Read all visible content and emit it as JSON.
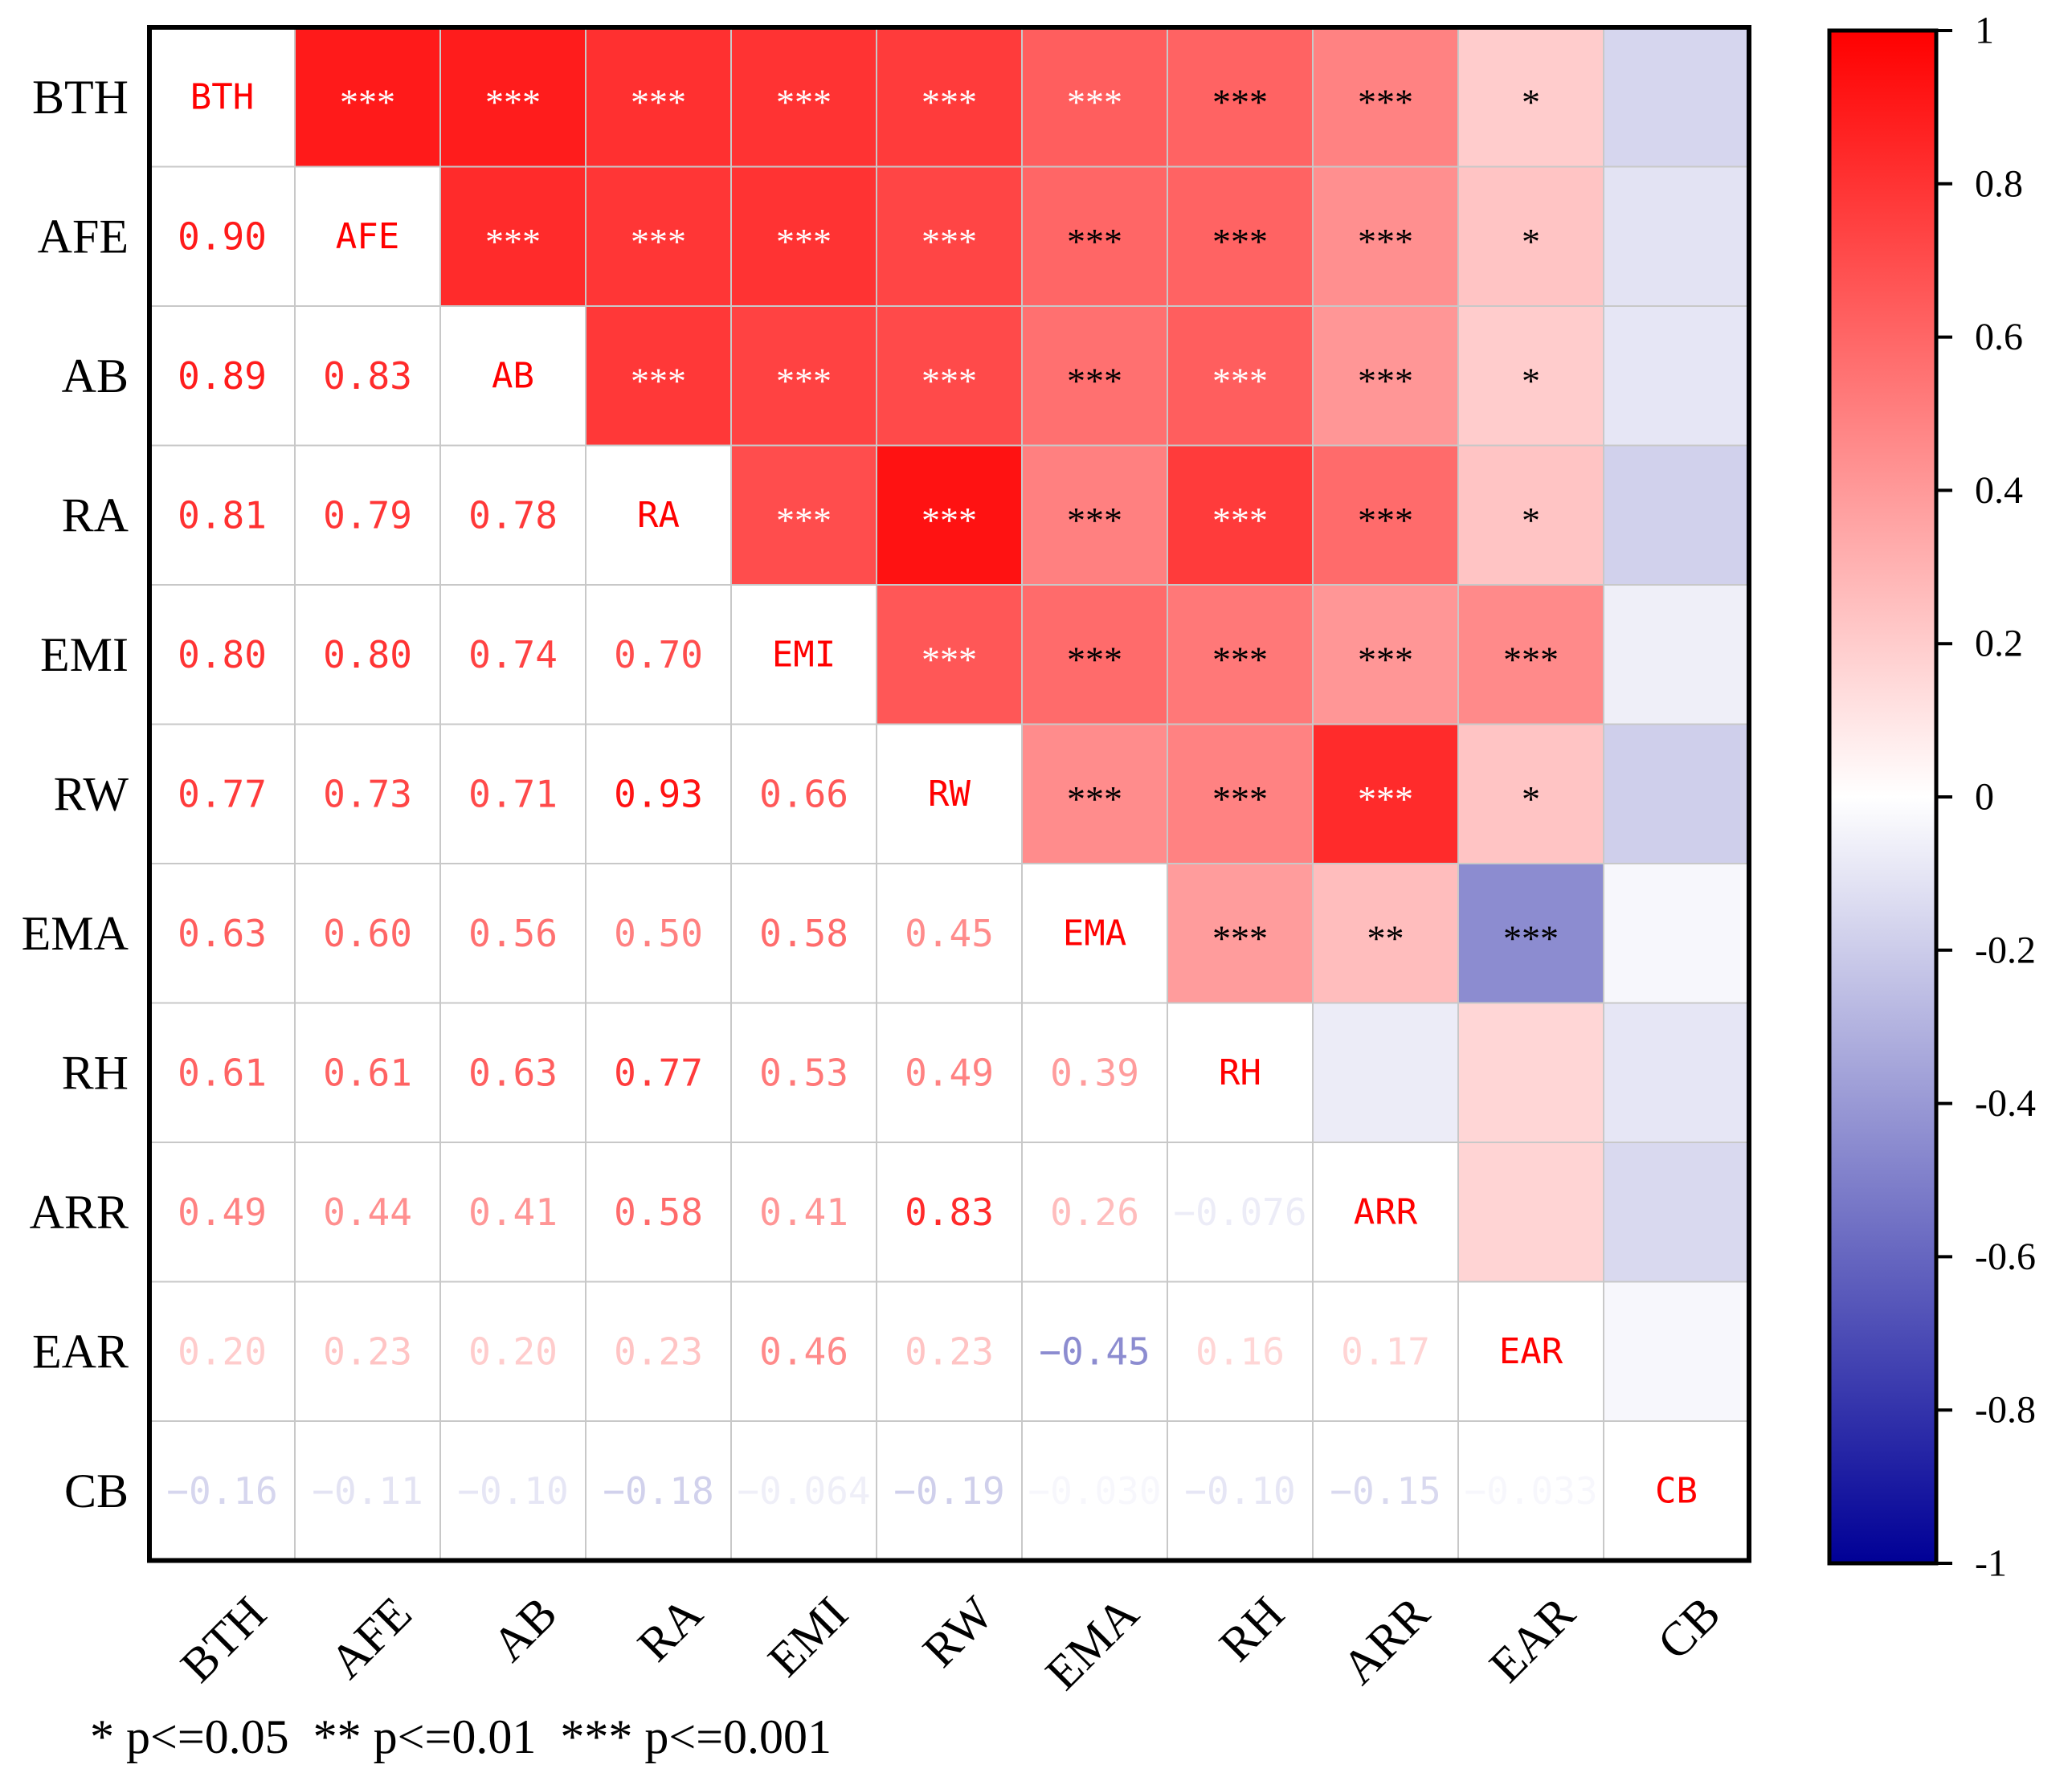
{
  "chart_data": {
    "type": "heatmap",
    "title": "",
    "variables": [
      "BTH",
      "AFE",
      "AB",
      "RA",
      "EMI",
      "RW",
      "EMA",
      "RH",
      "ARR",
      "EAR",
      "CB"
    ],
    "lower_triangle_correlations": [
      [],
      [
        "0.90"
      ],
      [
        "0.89",
        "0.83"
      ],
      [
        "0.81",
        "0.79",
        "0.78"
      ],
      [
        "0.80",
        "0.80",
        "0.74",
        "0.70"
      ],
      [
        "0.77",
        "0.73",
        "0.71",
        "0.93",
        "0.66"
      ],
      [
        "0.63",
        "0.60",
        "0.56",
        "0.50",
        "0.58",
        "0.45"
      ],
      [
        "0.61",
        "0.61",
        "0.63",
        "0.77",
        "0.53",
        "0.49",
        "0.39"
      ],
      [
        "0.49",
        "0.44",
        "0.41",
        "0.58",
        "0.41",
        "0.83",
        "0.26",
        "−0.076"
      ],
      [
        "0.20",
        "0.23",
        "0.20",
        "0.23",
        "0.46",
        "0.23",
        "−0.45",
        "0.16",
        "0.17"
      ],
      [
        "−0.16",
        "−0.11",
        "−0.10",
        "−0.18",
        "−0.064",
        "−0.19",
        "−0.030",
        "−0.10",
        "−0.15",
        "−0.033"
      ]
    ],
    "upper_triangle_significance": [
      [
        "***",
        "***",
        "***",
        "***",
        "***",
        "***",
        "***",
        "***",
        "*",
        ""
      ],
      [
        "***",
        "***",
        "***",
        "***",
        "***",
        "***",
        "***",
        "*",
        ""
      ],
      [
        "***",
        "***",
        "***",
        "***",
        "***",
        "***",
        "*",
        ""
      ],
      [
        "***",
        "***",
        "***",
        "***",
        "***",
        "*",
        ""
      ],
      [
        "***",
        "***",
        "***",
        "***",
        "***",
        ""
      ],
      [
        "***",
        "***",
        "***",
        "*",
        ""
      ],
      [
        "***",
        "**",
        "***",
        ""
      ],
      [
        "",
        "",
        ""
      ],
      [
        "",
        ""
      ],
      [
        ""
      ]
    ],
    "colorbar": {
      "range": [
        -1,
        1
      ],
      "ticks": [
        "1",
        "0.8",
        "0.6",
        "0.4",
        "0.2",
        "0",
        "-0.2",
        "-0.4",
        "-0.6",
        "-0.8",
        "-1"
      ],
      "colors": {
        "low": "#000096",
        "mid": "#ffffff",
        "high": "#ff0000"
      }
    },
    "footnote": "* p<=0.05  ** p<=0.01  *** p<=0.001"
  }
}
